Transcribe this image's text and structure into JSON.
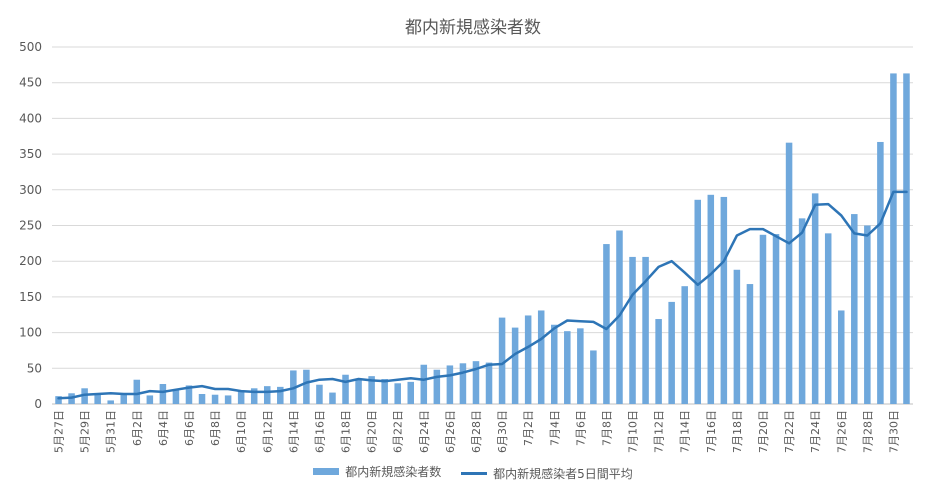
{
  "chart_data": {
    "type": "bar",
    "title": "都内新規感染者数",
    "ylim": [
      0,
      500
    ],
    "yticks": [
      "0",
      "50",
      "100",
      "150",
      "200",
      "250",
      "300",
      "350",
      "400",
      "450",
      "500"
    ],
    "categories": [
      "5月27日",
      "5月28日",
      "5月29日",
      "5月30日",
      "5月31日",
      "6月1日",
      "6月2日",
      "6月3日",
      "6月4日",
      "6月5日",
      "6月6日",
      "6月7日",
      "6月8日",
      "6月9日",
      "6月10日",
      "6月11日",
      "6月12日",
      "6月13日",
      "6月14日",
      "6月15日",
      "6月16日",
      "6月17日",
      "6月18日",
      "6月19日",
      "6月20日",
      "6月21日",
      "6月22日",
      "6月23日",
      "6月24日",
      "6月25日",
      "6月26日",
      "6月27日",
      "6月28日",
      "6月29日",
      "6月30日",
      "7月1日",
      "7月2日",
      "7月3日",
      "7月4日",
      "7月5日",
      "7月6日",
      "7月7日",
      "7月8日",
      "7月9日",
      "7月10日",
      "7月11日",
      "7月12日",
      "7月13日",
      "7月14日",
      "7月15日",
      "7月16日",
      "7月17日",
      "7月18日",
      "7月19日",
      "7月20日",
      "7月21日",
      "7月22日",
      "7月23日",
      "7月24日",
      "7月25日",
      "7月26日",
      "7月27日",
      "7月28日",
      "7月29日",
      "7月30日",
      "7月31日"
    ],
    "xtick_labels": [
      "5月27日",
      "",
      "5月29日",
      "",
      "5月31日",
      "",
      "6月2日",
      "",
      "6月4日",
      "",
      "6月6日",
      "",
      "6月8日",
      "",
      "6月10日",
      "",
      "6月12日",
      "",
      "6月14日",
      "",
      "6月16日",
      "",
      "6月18日",
      "",
      "6月20日",
      "",
      "6月22日",
      "",
      "6月24日",
      "",
      "6月26日",
      "",
      "6月28日",
      "",
      "6月30日",
      "",
      "7月2日",
      "",
      "7月4日",
      "",
      "7月6日",
      "",
      "7月8日",
      "",
      "7月10日",
      "",
      "7月12日",
      "",
      "7月14日",
      "",
      "7月16日",
      "",
      "7月18日",
      "",
      "7月20日",
      "",
      "7月22日",
      "",
      "7月24日",
      "",
      "7月26日",
      "",
      "7月28日",
      "",
      "7月30日",
      ""
    ],
    "series": [
      {
        "name": "都内新規感染者数",
        "type": "bar",
        "color": "#6fa8dc",
        "values": [
          11,
          15,
          22,
          14,
          5,
          13,
          34,
          12,
          28,
          20,
          26,
          14,
          13,
          12,
          18,
          22,
          25,
          24,
          47,
          48,
          27,
          16,
          41,
          35,
          39,
          35,
          29,
          31,
          55,
          48,
          54,
          57,
          60,
          58,
          121,
          107,
          124,
          131,
          111,
          102,
          106,
          75,
          224,
          243,
          206,
          206,
          119,
          143,
          165,
          286,
          293,
          290,
          188,
          168,
          237,
          238,
          366,
          260,
          295,
          239,
          131,
          266,
          250,
          367,
          463,
          463
        ]
      },
      {
        "name": "都内新規感染者5日間平均",
        "type": "line",
        "color": "#2e75b6",
        "values": [
          8,
          9,
          13,
          14,
          15,
          14,
          14,
          18,
          17,
          20,
          23,
          25,
          21,
          21,
          18,
          17,
          17,
          18,
          22,
          30,
          34,
          35,
          31,
          35,
          33,
          32,
          34,
          36,
          34,
          38,
          40,
          44,
          49,
          55,
          56,
          70,
          80,
          91,
          106,
          117,
          116,
          115,
          105,
          124,
          153,
          172,
          192,
          200,
          184,
          167,
          182,
          200,
          236,
          245,
          245,
          235,
          225,
          240,
          279,
          280,
          264,
          239,
          236,
          253,
          297,
          297
        ]
      }
    ]
  }
}
